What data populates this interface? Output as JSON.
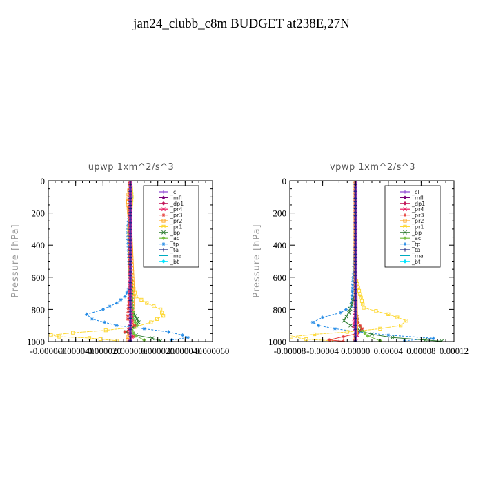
{
  "figure": {
    "title": "jan24_clubb_c8m  BUDGET at238E,27N"
  },
  "legend_entries": [
    {
      "label": "_cl",
      "color": "#8a3fd1",
      "marker": "plus"
    },
    {
      "label": "_mfl",
      "color": "#7a007a",
      "marker": "diamond"
    },
    {
      "label": "_dp1",
      "color": "#c2185b",
      "marker": "diamond"
    },
    {
      "label": "_pr4",
      "color": "#e91e63",
      "marker": "x"
    },
    {
      "label": "_pr3",
      "color": "#e53935",
      "marker": "star"
    },
    {
      "label": "_pr2",
      "color": "#ffa726",
      "marker": "square"
    },
    {
      "label": "_pr1",
      "color": "#fdd835",
      "marker": "square"
    },
    {
      "label": "_bp",
      "color": "#2e7d32",
      "marker": "x"
    },
    {
      "label": "_ac",
      "color": "#76c043",
      "marker": "diamond"
    },
    {
      "label": "_tp",
      "color": "#1e88e5",
      "marker": "star"
    },
    {
      "label": "_ta",
      "color": "#1a237e",
      "marker": "plus"
    },
    {
      "label": "_ma",
      "color": "#00acc1",
      "marker": "dash"
    },
    {
      "label": "_bt",
      "color": "#00e5ff",
      "marker": "diamond"
    }
  ],
  "chart_data": [
    {
      "type": "line",
      "title": "upwp   1xm^2/s^3",
      "ylabel": "Pressure [hPa]",
      "xlabel": "",
      "ylim": [
        1000,
        0
      ],
      "xlim": [
        -6e-05,
        6e-05
      ],
      "grid": false,
      "legend_position": "top-right",
      "xticks": [
        -6e-05,
        -4e-05,
        -2e-05,
        0.0,
        2e-05,
        4e-05,
        6e-05
      ],
      "xtick_labels": [
        "-0.000060",
        "-0.000040",
        "-0.000020",
        "0.000000",
        "0.000020",
        "0.000040",
        "0.000060"
      ],
      "yticks": [
        0,
        200,
        400,
        600,
        800,
        1000
      ],
      "ytick_labels": [
        "0",
        "200",
        "400",
        "600",
        "800",
        "1000"
      ],
      "series": [
        {
          "name": "_tp",
          "color": "#1e88e5",
          "marker": "star",
          "x": [
            0,
            1e-06,
            -2e-06,
            -1e-06,
            0,
            -4e-06,
            -1e-05,
            -2e-05,
            -3.2e-05,
            -2.8e-05,
            -1e-05,
            1e-05,
            2.8e-05,
            3.8e-05,
            4.2e-05,
            3e-05
          ],
          "y": [
            0,
            100,
            300,
            500,
            650,
            720,
            760,
            800,
            830,
            860,
            900,
            920,
            940,
            960,
            975,
            990
          ]
        },
        {
          "name": "_pr1",
          "color": "#fdd835",
          "marker": "square",
          "x": [
            0,
            1e-06,
            -1e-06,
            0,
            4e-06,
            1.2e-05,
            2.2e-05,
            2.4e-05,
            1.5e-05,
            3e-06,
            -1.8e-05,
            -4.2e-05,
            -5.8e-05,
            -5.2e-05,
            -3e-05,
            -2.2e-05,
            -1e-05
          ],
          "y": [
            0,
            100,
            300,
            600,
            720,
            760,
            800,
            840,
            880,
            910,
            930,
            945,
            960,
            970,
            978,
            985,
            995
          ]
        },
        {
          "name": "_pr2",
          "color": "#ffa726",
          "marker": "square",
          "x": [
            0,
            -1e-06,
            -2e-06,
            0,
            2e-06,
            1e-06,
            -1e-06,
            -2e-06
          ],
          "y": [
            0,
            60,
            110,
            300,
            700,
            900,
            950,
            990
          ]
        },
        {
          "name": "_bp",
          "color": "#2e7d32",
          "marker": "x",
          "x": [
            0,
            0,
            1e-06,
            6e-06,
            2e-06,
            -3e-06,
            4e-06,
            1.6e-05,
            2.2e-05
          ],
          "y": [
            0,
            500,
            800,
            880,
            910,
            940,
            960,
            980,
            995
          ]
        },
        {
          "name": "_ac",
          "color": "#76c043",
          "marker": "diamond",
          "x": [
            0,
            0,
            2e-06,
            5e-06,
            1e-06,
            4e-06,
            1e-05
          ],
          "y": [
            0,
            600,
            860,
            900,
            930,
            965,
            990
          ]
        },
        {
          "name": "_pr3",
          "color": "#e53935",
          "marker": "star",
          "x": [
            0,
            0,
            -2e-06,
            3e-06,
            -4e-06,
            2e-06,
            -1e-06
          ],
          "y": [
            0,
            600,
            860,
            900,
            940,
            970,
            995
          ]
        },
        {
          "name": "_pr4",
          "color": "#e91e63",
          "marker": "x",
          "x": [
            0,
            0,
            1e-06,
            -1e-06,
            1e-06,
            0
          ],
          "y": [
            0,
            700,
            880,
            930,
            970,
            995
          ]
        },
        {
          "name": "_dp1",
          "color": "#c2185b",
          "marker": "diamond",
          "x": [
            0,
            0,
            0,
            0
          ],
          "y": [
            0,
            500,
            900,
            995
          ]
        },
        {
          "name": "_mfl",
          "color": "#7a007a",
          "marker": "diamond",
          "x": [
            0,
            0,
            0,
            0
          ],
          "y": [
            0,
            500,
            900,
            995
          ]
        },
        {
          "name": "_cl",
          "color": "#8a3fd1",
          "marker": "plus",
          "x": [
            0,
            0,
            0,
            0
          ],
          "y": [
            0,
            500,
            900,
            995
          ]
        },
        {
          "name": "_ta",
          "color": "#1a237e",
          "marker": "plus",
          "x": [
            0,
            0,
            0,
            0
          ],
          "y": [
            0,
            500,
            900,
            995
          ]
        }
      ]
    },
    {
      "type": "line",
      "title": "vpwp   1xm^2/s^3",
      "ylabel": "Pressure [hPa]",
      "xlabel": "",
      "ylim": [
        1000,
        0
      ],
      "xlim": [
        -8e-05,
        0.00012
      ],
      "grid": false,
      "legend_position": "top-right",
      "xticks": [
        -8e-05,
        -4e-05,
        0.0,
        4e-05,
        8e-05,
        0.00012
      ],
      "xtick_labels": [
        "-0.00008",
        "-0.00004",
        "0.00000",
        "0.00004",
        "0.00008",
        "0.00012"
      ],
      "yticks": [
        0,
        200,
        400,
        600,
        800,
        1000
      ],
      "ytick_labels": [
        "0",
        "200",
        "400",
        "600",
        "800",
        "1000"
      ],
      "series": [
        {
          "name": "_tp",
          "color": "#1e88e5",
          "marker": "star",
          "x": [
            0,
            0,
            -5e-06,
            -1.8e-05,
            -4e-05,
            -5.2e-05,
            -4.5e-05,
            -2.5e-05,
            5e-06,
            4e-05,
            9.5e-05,
            6e-05
          ],
          "y": [
            0,
            400,
            780,
            820,
            850,
            880,
            900,
            920,
            940,
            960,
            980,
            995
          ]
        },
        {
          "name": "_pr1",
          "color": "#fdd835",
          "marker": "square",
          "x": [
            0,
            0,
            1e-05,
            4e-05,
            6.2e-05,
            5.5e-05,
            3e-05,
            -1e-05,
            -5e-05,
            -7.8e-05,
            -6e-05,
            -3e-05
          ],
          "y": [
            0,
            600,
            790,
            830,
            870,
            900,
            920,
            940,
            955,
            970,
            985,
            995
          ]
        },
        {
          "name": "_bp",
          "color": "#2e7d32",
          "marker": "x",
          "x": [
            0,
            0,
            -8e-06,
            -1.4e-05,
            -6e-06,
            5e-06,
            2e-05,
            4.5e-05,
            8.5e-05,
            0.000105
          ],
          "y": [
            0,
            700,
            820,
            870,
            900,
            930,
            955,
            975,
            990,
            998
          ]
        },
        {
          "name": "_ac",
          "color": "#76c043",
          "marker": "diamond",
          "x": [
            0,
            0,
            3e-06,
            8e-06,
            1.5e-05,
            3e-05
          ],
          "y": [
            0,
            800,
            880,
            930,
            965,
            995
          ]
        },
        {
          "name": "_pr3",
          "color": "#e53935",
          "marker": "star",
          "x": [
            0,
            0,
            3e-06,
            8e-06,
            2e-06,
            -1.5e-05,
            -3.2e-05,
            -1.5e-05
          ],
          "y": [
            0,
            800,
            880,
            920,
            950,
            970,
            990,
            998
          ]
        },
        {
          "name": "_pr4",
          "color": "#e91e63",
          "marker": "x",
          "x": [
            0,
            0,
            -2e-06,
            2e-06,
            -1e-06
          ],
          "y": [
            0,
            800,
            900,
            960,
            995
          ]
        },
        {
          "name": "_pr2",
          "color": "#ffa726",
          "marker": "square",
          "x": [
            0,
            0,
            1e-06,
            -1e-06
          ],
          "y": [
            0,
            600,
            950,
            995
          ]
        },
        {
          "name": "_dp1",
          "color": "#c2185b",
          "marker": "diamond",
          "x": [
            0,
            0,
            0,
            0
          ],
          "y": [
            0,
            500,
            900,
            995
          ]
        },
        {
          "name": "_mfl",
          "color": "#7a007a",
          "marker": "diamond",
          "x": [
            0,
            0,
            0,
            0
          ],
          "y": [
            0,
            500,
            900,
            995
          ]
        },
        {
          "name": "_cl",
          "color": "#8a3fd1",
          "marker": "plus",
          "x": [
            0,
            0,
            0,
            0
          ],
          "y": [
            0,
            500,
            900,
            995
          ]
        },
        {
          "name": "_ta",
          "color": "#1a237e",
          "marker": "plus",
          "x": [
            0,
            0,
            0,
            0
          ],
          "y": [
            0,
            500,
            900,
            995
          ]
        }
      ]
    }
  ]
}
